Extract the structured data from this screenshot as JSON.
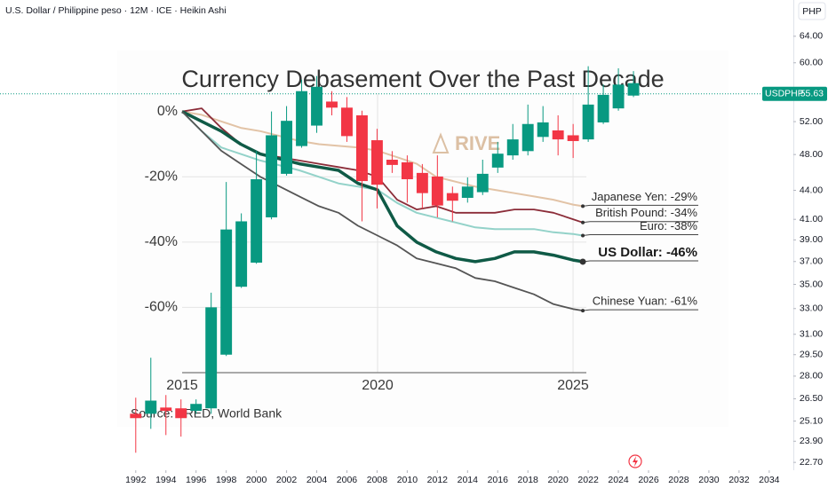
{
  "chart_data": [
    {
      "type": "candlestick",
      "title": "U.S. Dollar / Philippine peso · 12M · ICE · Heikin Ashi",
      "currency": "PHP",
      "log_scale": true,
      "grid": false,
      "up_color": "#089981",
      "down_color": "#f23645",
      "x": [
        1992,
        1993,
        1994,
        1995,
        1996,
        1997,
        1998,
        1999,
        2000,
        2001,
        2002,
        2003,
        2004,
        2005,
        2006,
        2007,
        2008,
        2009,
        2010,
        2011,
        2012,
        2013,
        2014,
        2015,
        2016,
        2017,
        2018,
        2019,
        2020,
        2021,
        2022,
        2023,
        2024,
        2025
      ],
      "open": [
        25.55,
        25.55,
        25.94,
        25.89,
        25.73,
        25.89,
        29.5,
        34.8,
        36.9,
        41.2,
        45.8,
        49.0,
        51.5,
        54.6,
        53.8,
        52.8,
        49.7,
        47.4,
        47.1,
        45.9,
        45.5,
        43.7,
        43.2,
        43.8,
        46.5,
        47.9,
        48.4,
        50.1,
        50.9,
        50.3,
        49.8,
        51.9,
        53.7,
        55.4
      ],
      "high": [
        26.57,
        29.28,
        26.74,
        26.46,
        26.46,
        34.3,
        44.9,
        41.6,
        48.4,
        53.3,
        54.0,
        57.6,
        58.1,
        56.0,
        55.2,
        53.4,
        51.1,
        48.4,
        47.9,
        46.9,
        47.9,
        44.4,
        45.4,
        47.4,
        49.5,
        51.7,
        54.2,
        54.0,
        52.8,
        51.7,
        59.5,
        56.9,
        59.2,
        58.8
      ],
      "low": [
        23.24,
        24.63,
        24.26,
        24.17,
        25.55,
        25.55,
        29.4,
        34.7,
        36.8,
        41.0,
        45.6,
        48.8,
        50.6,
        52.8,
        49.5,
        40.8,
        42.1,
        45.9,
        42.7,
        42.1,
        41.2,
        40.8,
        42.7,
        43.5,
        45.9,
        47.4,
        47.9,
        49.5,
        47.9,
        47.6,
        49.5,
        51.7,
        53.4,
        55.2
      ],
      "close": [
        25.28,
        26.38,
        25.73,
        25.28,
        26.17,
        33.1,
        40.0,
        40.8,
        45.2,
        50.3,
        52.1,
        56.0,
        56.6,
        53.8,
        50.2,
        45.0,
        44.6,
        46.8,
        45.2,
        43.7,
        42.4,
        42.9,
        44.4,
        45.8,
        48.1,
        49.8,
        51.7,
        51.9,
        49.8,
        49.6,
        54.2,
        55.5,
        56.9,
        57.1
      ],
      "xlim": [
        1983,
        2035.6
      ],
      "xticks": [
        1992,
        1994,
        1996,
        1998,
        2000,
        2002,
        2004,
        2006,
        2008,
        2010,
        2012,
        2014,
        2016,
        2018,
        2020,
        2022,
        2024,
        2026,
        2028,
        2030,
        2032,
        2034
      ],
      "ylim": [
        22.27,
        69.9
      ],
      "yticks": [
        {
          "value": 64,
          "label": "64.00"
        },
        {
          "value": 60,
          "label": "60.00"
        },
        {
          "value": 52,
          "label": "52.00"
        },
        {
          "value": 48,
          "label": "48.00"
        },
        {
          "value": 44,
          "label": "44.00"
        },
        {
          "value": 41,
          "label": "41.00"
        },
        {
          "value": 39,
          "label": "39.00"
        },
        {
          "value": 37,
          "label": "37.00"
        },
        {
          "value": 35,
          "label": "35.00"
        },
        {
          "value": 33,
          "label": "33.00"
        },
        {
          "value": 31,
          "label": "31.00"
        },
        {
          "value": 29.5,
          "label": "29.50"
        },
        {
          "value": 28,
          "label": "28.00"
        },
        {
          "value": 26.5,
          "label": "26.50"
        },
        {
          "value": 25.1,
          "label": "25.10"
        },
        {
          "value": 23.9,
          "label": "23.90"
        },
        {
          "value": 22.7,
          "label": "22.70"
        }
      ],
      "last_price": {
        "label": "USDPHP",
        "value": 55.63
      }
    },
    {
      "type": "line",
      "title": "Currency Debasement Over the Past Decade",
      "source": "Source: FRED, World Bank",
      "watermark": "RIVE",
      "x": [
        2015,
        2015.5,
        2016,
        2016.5,
        2017,
        2017.5,
        2018,
        2018.5,
        2019,
        2019.5,
        2020,
        2020.5,
        2021,
        2021.5,
        2022,
        2022.5,
        2023,
        2023.5,
        2024,
        2024.5,
        2025,
        2025.25
      ],
      "series": [
        {
          "label": "Japanese Yen: -29%",
          "color": "#e2c3a6",
          "width": 2,
          "values": [
            0,
            -1,
            -3,
            -5,
            -6,
            -7.5,
            -9,
            -10,
            -10.5,
            -11,
            -12,
            -14,
            -16,
            -20,
            -21.5,
            -23,
            -24,
            -25,
            -26,
            -27,
            -28.5,
            -29
          ]
        },
        {
          "label": "British Pound: -34%",
          "color": "#8b2c38",
          "width": 1.8,
          "values": [
            0,
            1,
            -5,
            -10,
            -13,
            -14,
            -15,
            -16,
            -17,
            -18,
            -20,
            -27,
            -30,
            -29,
            -31,
            -31,
            -31,
            -30,
            -30,
            -31,
            -33,
            -34
          ]
        },
        {
          "label": "Euro: -38%",
          "color": "#93d2c9",
          "width": 2,
          "values": [
            0,
            -6,
            -11,
            -13,
            -15,
            -16.5,
            -18,
            -20,
            -22,
            -23,
            -24,
            -28,
            -31,
            -32.5,
            -34,
            -35.5,
            -36,
            -36,
            -36,
            -37,
            -37.5,
            -38
          ]
        },
        {
          "label": "US Dollar: -46%",
          "color": "#0f5a46",
          "width": 3.5,
          "values": [
            0,
            -3,
            -6,
            -10,
            -13,
            -14.5,
            -16,
            -17,
            -18,
            -22,
            -24,
            -35,
            -40,
            -43,
            -45,
            -46,
            -45,
            -43,
            -43,
            -44,
            -45.5,
            -46
          ]
        },
        {
          "label": "Chinese Yuan: -61%",
          "color": "#555555",
          "width": 1.8,
          "values": [
            0,
            -6,
            -12,
            -16,
            -20,
            -23,
            -26,
            -29,
            -31,
            -35,
            -38,
            -41,
            -45,
            -46.5,
            -48,
            -51,
            -52,
            -54,
            -56,
            -59,
            -60.5,
            -61
          ]
        }
      ],
      "xlim": [
        2015,
        2025.34
      ],
      "xticks": [
        2015,
        2020,
        2025
      ],
      "ylim": [
        -80,
        7
      ],
      "yticks": [
        {
          "value": 0,
          "label": "0%"
        },
        {
          "value": -20,
          "label": "-20%"
        },
        {
          "value": -40,
          "label": "-40%"
        },
        {
          "value": -60,
          "label": "-60%"
        }
      ],
      "grid": true
    }
  ]
}
